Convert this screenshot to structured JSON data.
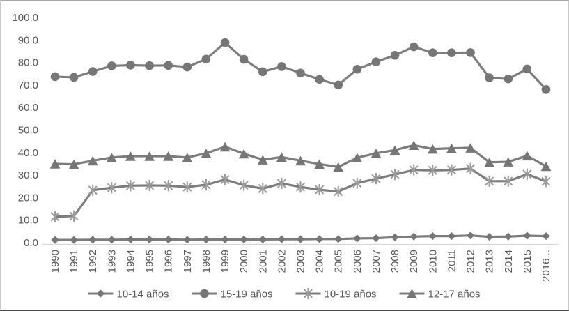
{
  "chart_data": {
    "type": "line",
    "title": "",
    "xlabel": "",
    "ylabel": "",
    "ylim": [
      0,
      100
    ],
    "ytick_step": 10,
    "y_ticks": [
      "100.0",
      "90.0",
      "80.0",
      "70.0",
      "60.0",
      "50.0",
      "40.0",
      "30.0",
      "20.0",
      "10.0",
      "0.0"
    ],
    "grid": false,
    "legend_position": "bottom",
    "x": [
      "1990",
      "1991",
      "1992",
      "1993",
      "1994",
      "1995",
      "1996",
      "1997",
      "1998",
      "1999",
      "2000",
      "2001",
      "2002",
      "2003",
      "2004",
      "2005",
      "2006",
      "2007",
      "2008",
      "2009",
      "2010",
      "2011",
      "2012",
      "2013",
      "2014",
      "2015",
      "2016..."
    ],
    "series": [
      {
        "name": "10-14 años",
        "marker": "diamond",
        "values": [
          1.2,
          1.2,
          1.3,
          1.3,
          1.4,
          1.4,
          1.4,
          1.3,
          1.4,
          1.4,
          1.4,
          1.4,
          1.5,
          1.5,
          1.6,
          1.6,
          1.9,
          2.0,
          2.4,
          2.7,
          2.9,
          2.9,
          3.2,
          2.6,
          2.7,
          3.1,
          2.9
        ]
      },
      {
        "name": "15-19 años",
        "marker": "circle",
        "values": [
          73.7,
          73.4,
          76.0,
          78.5,
          78.8,
          78.6,
          78.7,
          78.0,
          81.5,
          88.8,
          81.4,
          75.9,
          78.2,
          75.3,
          72.5,
          70.0,
          77.0,
          80.3,
          83.2,
          87.0,
          84.3,
          84.3,
          84.4,
          73.2,
          72.7,
          77.1,
          68.0
        ]
      },
      {
        "name": "10-19 años",
        "marker": "asterisk",
        "values": [
          11.5,
          11.8,
          23.3,
          24.4,
          25.3,
          25.4,
          25.3,
          24.7,
          25.7,
          28.0,
          25.5,
          24.0,
          26.3,
          24.7,
          23.5,
          22.7,
          26.4,
          28.4,
          30.3,
          32.3,
          32.1,
          32.3,
          32.9,
          27.3,
          27.3,
          30.4,
          27.2
        ]
      },
      {
        "name": "12-17 años",
        "marker": "triangle",
        "values": [
          35.0,
          34.8,
          36.4,
          37.8,
          38.4,
          38.4,
          38.4,
          37.8,
          39.7,
          42.6,
          39.5,
          36.8,
          38.0,
          36.4,
          34.9,
          33.6,
          37.7,
          39.7,
          41.1,
          43.3,
          41.6,
          41.9,
          42.1,
          35.7,
          35.9,
          38.6,
          33.9
        ]
      }
    ],
    "colors": {
      "line": "#7d7d7d",
      "marker": "#767676",
      "asterisk_marker": "#9c9c9c",
      "text": "#595959",
      "axis_line": "#d6d6d6",
      "frame_border": "#c9c9c9",
      "frame_top": "#a8a8a8",
      "frame_bottom": "#474747"
    }
  }
}
